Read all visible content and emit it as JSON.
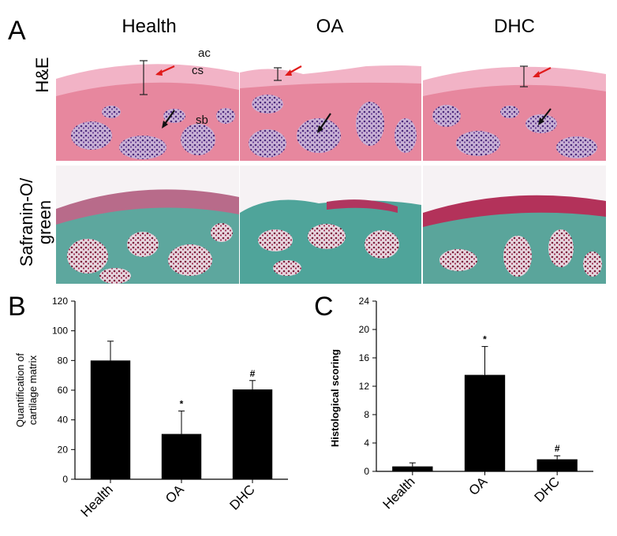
{
  "panel_labels": {
    "a": "A",
    "b": "B",
    "c": "C"
  },
  "panel_a": {
    "columns": [
      "Health",
      "OA",
      "DHC"
    ],
    "rows": [
      "H&E",
      "Safranin-O/\ngreen"
    ],
    "row_label_line1": "Safranin-O/",
    "row_label_line2": "green",
    "annotations": {
      "ac": "ac",
      "cs": "cs",
      "sb": "sb"
    }
  },
  "chart_data": [
    {
      "type": "bar",
      "panel": "B",
      "categories": [
        "Health",
        "OA",
        "DHC"
      ],
      "values": [
        80,
        30.5,
        60.5
      ],
      "errors": [
        13,
        15.5,
        6
      ],
      "markers": [
        "",
        "*",
        "#"
      ],
      "ylabel_line1": "Quantification of",
      "ylabel_line2": "cartilage matrix",
      "ylim": [
        0,
        120
      ],
      "yticks": [
        0,
        20,
        40,
        60,
        80,
        100,
        120
      ],
      "bar_color": "#000000",
      "grid": false
    },
    {
      "type": "bar",
      "panel": "C",
      "categories": [
        "Health",
        "OA",
        "DHC"
      ],
      "values": [
        0.7,
        13.6,
        1.7
      ],
      "errors": [
        0.5,
        4,
        0.5
      ],
      "markers": [
        "",
        "*",
        "#"
      ],
      "ylabel": "Histological scoring",
      "ylim": [
        0,
        24
      ],
      "yticks": [
        0,
        4,
        8,
        12,
        16,
        20,
        24
      ],
      "bar_color": "#000000",
      "grid": false
    }
  ]
}
